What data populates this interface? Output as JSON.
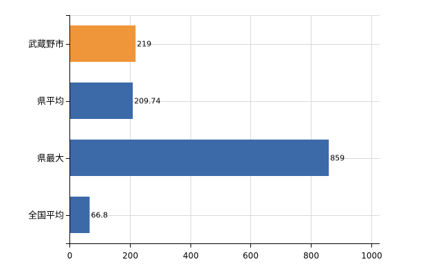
{
  "chart_data": {
    "type": "bar",
    "orientation": "horizontal",
    "title": "",
    "xlabel": "",
    "ylabel": "",
    "categories": [
      "武蔵野市",
      "県平均",
      "県最大",
      "全国平均"
    ],
    "values": [
      219,
      209.74,
      859,
      66.8
    ],
    "value_labels": [
      "219",
      "209.74",
      "859",
      "66.8"
    ],
    "bar_colors": [
      "#f0963a",
      "#3c6aa8",
      "#3c6aa8",
      "#3c6aa8"
    ],
    "xlim": [
      0,
      1000
    ],
    "xticks": [
      0,
      200,
      400,
      600,
      800,
      1000
    ],
    "xtick_labels": [
      "0",
      "200",
      "400",
      "600",
      "800",
      "1000"
    ],
    "grid": true,
    "legend": "none"
  }
}
